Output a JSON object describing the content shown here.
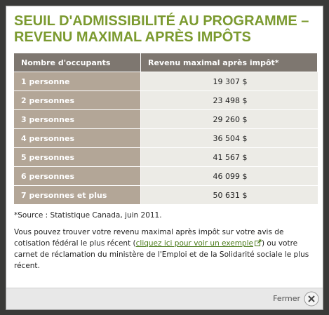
{
  "dialog": {
    "title_lines": [
      "SEUIL D'ADMISSIBILITÉ AU PROGRAMME –",
      "REVENU MAXIMAL APRÈS IMPÔTS"
    ],
    "table": {
      "headers": [
        "Nombre d'occupants",
        "Revenu maximal après impôt*"
      ],
      "rows": [
        [
          "1 personne",
          "19 307 $"
        ],
        [
          "2 personnes",
          "23 498 $"
        ],
        [
          "3 personnes",
          "29 260 $"
        ],
        [
          "4 personnes",
          "36 504 $"
        ],
        [
          "5 personnes",
          "41 567 $"
        ],
        [
          "6 personnes",
          "46 099 $"
        ],
        [
          "7 personnes et plus",
          "50 631 $"
        ]
      ]
    },
    "source": "*Source : Statistique Canada, juin 2011.",
    "paragraph": {
      "before": "Vous pouvez trouver votre revenu maximal après impôt sur votre avis de cotisation fédéral le plus récent (",
      "link": "cliquez ici pour voir un exemple",
      "after": ") ou votre carnet de réclamation du ministère de l'Emploi et de la Solidarité sociale le plus récent."
    },
    "footer": {
      "close": "Fermer"
    }
  }
}
